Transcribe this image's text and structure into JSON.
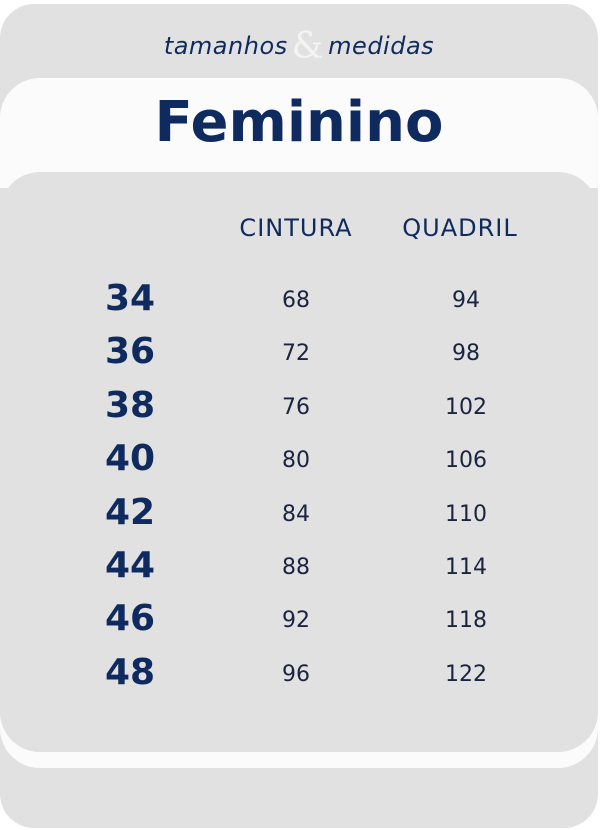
{
  "header": {
    "subtitle_left": "tamanhos",
    "ampersand": "&",
    "subtitle_right": "medidas",
    "title": "Feminino"
  },
  "table": {
    "columns": [
      "CINTURA",
      "QUADRIL"
    ],
    "rows": [
      {
        "size": "34",
        "cintura": "68",
        "quadril": "94"
      },
      {
        "size": "36",
        "cintura": "72",
        "quadril": "98"
      },
      {
        "size": "38",
        "cintura": "76",
        "quadril": "102"
      },
      {
        "size": "40",
        "cintura": "80",
        "quadril": "106"
      },
      {
        "size": "42",
        "cintura": "84",
        "quadril": "110"
      },
      {
        "size": "44",
        "cintura": "88",
        "quadril": "114"
      },
      {
        "size": "46",
        "cintura": "92",
        "quadril": "118"
      },
      {
        "size": "48",
        "cintura": "96",
        "quadril": "122"
      }
    ]
  },
  "colors": {
    "navy": "#0f2a5e",
    "panel": "#e1e1e1",
    "band": "#fbfbfb"
  }
}
